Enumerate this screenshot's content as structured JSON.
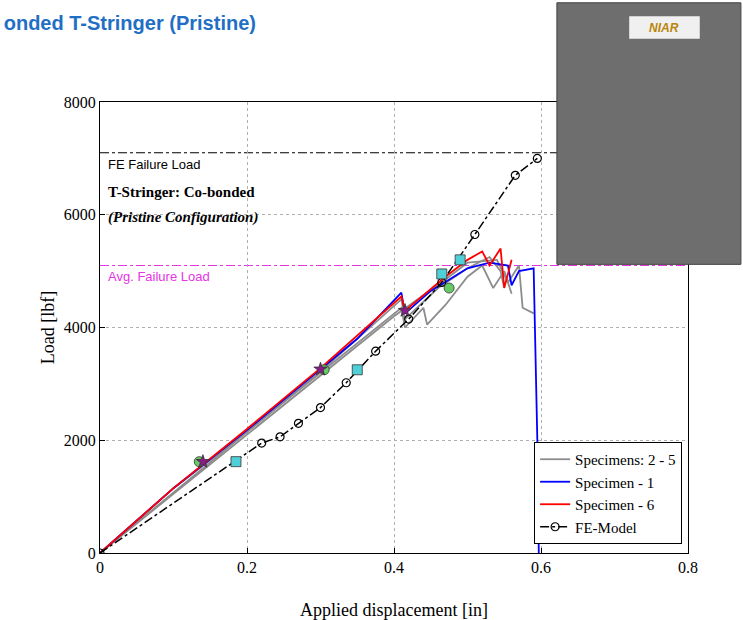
{
  "chart_data": {
    "type": "line",
    "title": "onded T-Stringer (Pristine)",
    "x_label": "Applied displacement [in]",
    "y_label": "Load [lbf]",
    "xlim": [
      0,
      0.8
    ],
    "xticks": [
      0,
      0.2,
      0.4,
      0.6,
      0.8
    ],
    "ylim": [
      0,
      8000
    ],
    "yticks": [
      0,
      2000,
      4000,
      6000,
      8000
    ],
    "grid": true,
    "legend": "bottom right",
    "annotations": [
      "T-Stringer: Co-bonded",
      "(Pristine Configuration)"
    ],
    "photo_label": "NIAR",
    "reference_lines": [
      {
        "label": "FE Failure Load",
        "value": 7100,
        "color": "#000000",
        "line_style": "dashdot"
      },
      {
        "label": "Avg. Failure Load",
        "value": 5100,
        "color": "#e633e6",
        "line_style": "dashdot"
      }
    ],
    "series": [
      {
        "name": "Specimens: 2 - 5",
        "color": "#8c8c8c",
        "line_style": "solid",
        "x": [
          0,
          0.1,
          0.2,
          0.3,
          0.4,
          0.41,
          0.415,
          0.43,
          0.44,
          0.445,
          0.47,
          0.5,
          0.52,
          0.535,
          0.55,
          0.56,
          null,
          0,
          0.2,
          0.3,
          0.4,
          0.47,
          0.5,
          0.54,
          0.555,
          0.57,
          0.575,
          0.59,
          null,
          0,
          0.2,
          0.3,
          0.41,
          0.415,
          0.46,
          0.5,
          0.53,
          0.545,
          0.55
        ],
        "values": [
          0,
          1150,
          2150,
          3200,
          4250,
          4350,
          4000,
          4200,
          4350,
          4050,
          4400,
          4900,
          5100,
          4700,
          5000,
          4600,
          null,
          0,
          2100,
          3150,
          4200,
          4850,
          5150,
          5200,
          4800,
          5100,
          4350,
          4250,
          null,
          0,
          2150,
          3220,
          4500,
          4150,
          4700,
          5050,
          5250,
          5000,
          4700
        ]
      },
      {
        "name": "Specimen - 1",
        "color": "#0000ff",
        "line_style": "solid",
        "x": [
          0,
          0.1,
          0.2,
          0.3,
          0.35,
          0.41,
          0.415,
          0.45,
          0.5,
          0.53,
          0.555,
          0.56,
          0.57,
          0.59,
          0.595,
          0.597
        ],
        "values": [
          0,
          1150,
          2180,
          3250,
          3800,
          4620,
          4250,
          4650,
          5050,
          5150,
          5100,
          4750,
          5000,
          5050,
          2000,
          0
        ]
      },
      {
        "name": "Specimen - 6",
        "color": "#ff0000",
        "line_style": "solid",
        "x": [
          0,
          0.1,
          0.2,
          0.3,
          0.41,
          0.415,
          0.47,
          0.5,
          0.52,
          0.53,
          0.545,
          0.55,
          0.56
        ],
        "values": [
          0,
          1150,
          2200,
          3280,
          4550,
          4300,
          4900,
          5200,
          5350,
          5100,
          5400,
          4700,
          5200
        ]
      },
      {
        "name": "FE-Model",
        "color": "#000000",
        "line_style": "dashdot",
        "marker": "open-circle",
        "x": [
          0,
          0.22,
          0.245,
          0.27,
          0.3,
          0.335,
          0.375,
          0.42,
          0.465,
          0.51,
          0.565,
          0.595
        ],
        "values": [
          0,
          1950,
          2060,
          2300,
          2580,
          3020,
          3580,
          4150,
          4800,
          5650,
          6700,
          7000
        ]
      },
      {
        "type": "scatter",
        "color": "#66cc66",
        "marker": "circle",
        "x": [
          0.135,
          0.305,
          0.475
        ],
        "values": [
          1620,
          3250,
          4700
        ]
      },
      {
        "type": "scatter",
        "color": "#8b1a8b",
        "marker": "star",
        "x": [
          0.14,
          0.3,
          0.415
        ],
        "values": [
          1620,
          3260,
          4300
        ]
      },
      {
        "type": "scatter",
        "color": "#4fd0d8",
        "marker": "square",
        "x": [
          0.185,
          0.35,
          0.465,
          0.49
        ],
        "values": [
          1620,
          3250,
          4950,
          5200
        ]
      }
    ]
  }
}
